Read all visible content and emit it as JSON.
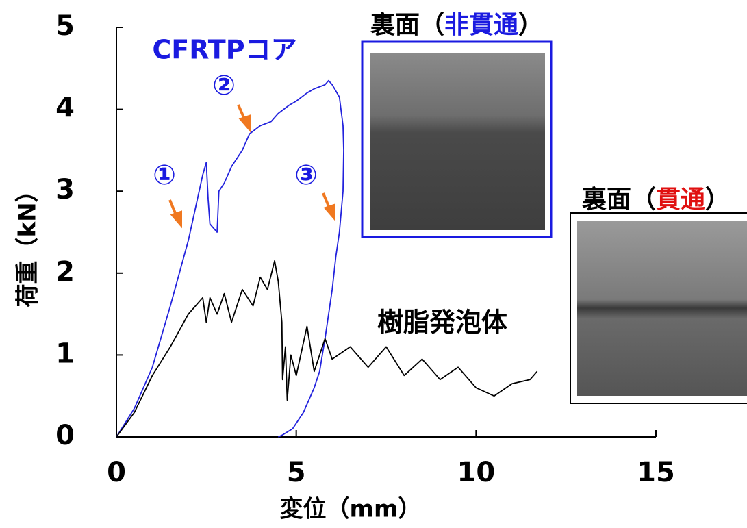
{
  "chart_data": {
    "type": "line",
    "x_label": "変位（mm）",
    "y_label": "荷重（kN）",
    "xlim": [
      0,
      15
    ],
    "ylim": [
      0,
      5
    ],
    "xticks": [
      0,
      5,
      10,
      15
    ],
    "yticks": [
      0,
      1,
      2,
      3,
      4,
      5
    ],
    "grid": false,
    "series": [
      {
        "name": "CFRTPコア",
        "color": "#2222dd",
        "x": [
          0,
          0.5,
          1,
          1.5,
          2,
          2.4,
          2.5,
          2.55,
          2.6,
          2.7,
          2.8,
          2.85,
          3.0,
          3.2,
          3.5,
          3.7,
          4.0,
          4.3,
          4.5,
          4.8,
          5.0,
          5.3,
          5.5,
          5.8,
          5.9,
          6.0,
          6.2,
          6.3,
          6.32,
          6.3,
          6.2,
          6.1,
          6.0,
          5.8,
          5.65,
          5.5,
          5.2,
          4.9,
          4.6,
          4.5
        ],
        "values": [
          0,
          0.35,
          0.85,
          1.6,
          2.4,
          3.2,
          3.35,
          2.9,
          2.6,
          2.55,
          2.5,
          3.0,
          3.1,
          3.3,
          3.5,
          3.7,
          3.8,
          3.85,
          3.95,
          4.05,
          4.1,
          4.2,
          4.25,
          4.3,
          4.35,
          4.3,
          4.15,
          3.8,
          3.5,
          3.0,
          2.5,
          2.2,
          1.8,
          1.2,
          0.8,
          0.6,
          0.3,
          0.1,
          0.02,
          0
        ]
      },
      {
        "name": "樹脂発泡体",
        "color": "#000000",
        "x": [
          0,
          0.5,
          1,
          1.5,
          2,
          2.4,
          2.5,
          2.6,
          2.8,
          3.0,
          3.2,
          3.5,
          3.8,
          4.0,
          4.2,
          4.4,
          4.5,
          4.6,
          4.62,
          4.7,
          4.75,
          4.85,
          5.0,
          5.3,
          5.5,
          5.8,
          6.0,
          6.5,
          7.0,
          7.5,
          8.0,
          8.5,
          9.0,
          9.5,
          10.0,
          10.5,
          11.0,
          11.5,
          11.7
        ],
        "values": [
          0,
          0.3,
          0.75,
          1.1,
          1.5,
          1.7,
          1.4,
          1.7,
          1.5,
          1.75,
          1.4,
          1.8,
          1.6,
          1.95,
          1.8,
          2.15,
          1.9,
          1.4,
          0.7,
          1.1,
          0.45,
          1.0,
          0.75,
          1.35,
          0.8,
          1.2,
          0.95,
          1.1,
          0.85,
          1.1,
          0.75,
          0.95,
          0.7,
          0.85,
          0.6,
          0.5,
          0.65,
          0.7,
          0.8
        ]
      }
    ],
    "annotations": [
      "①",
      "②",
      "③"
    ],
    "panels": [
      {
        "title_parts": [
          "裏面（",
          "非貫通",
          "）"
        ]
      },
      {
        "title_parts": [
          "裏面（",
          "貫通",
          "）"
        ]
      }
    ]
  }
}
